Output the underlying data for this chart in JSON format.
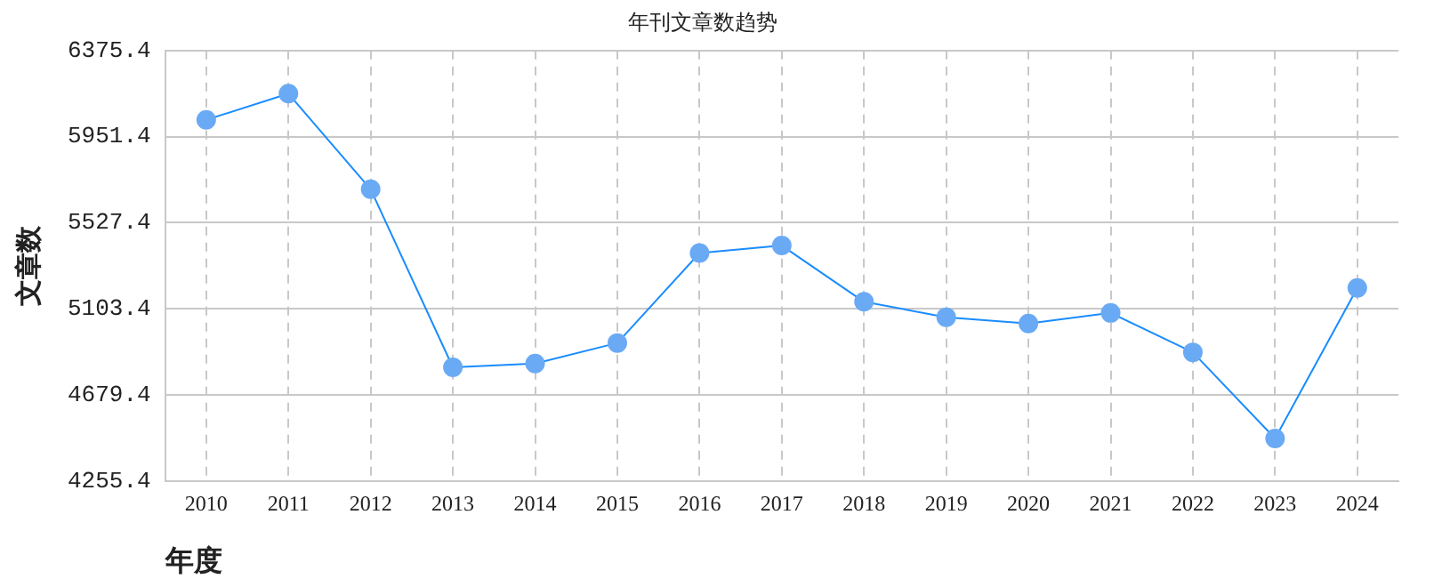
{
  "chart_data": {
    "type": "line",
    "title": "年刊文章数趋势",
    "xlabel": "年度",
    "ylabel": "文章数",
    "categories": [
      "2010",
      "2011",
      "2012",
      "2013",
      "2014",
      "2015",
      "2016",
      "2017",
      "2018",
      "2019",
      "2020",
      "2021",
      "2022",
      "2023",
      "2024"
    ],
    "series": [
      {
        "color": "#1a8cff",
        "values": [
          6034,
          6163,
          5692,
          4815,
          4834,
          4935,
          5378,
          5415,
          5138,
          5062,
          5031,
          5083,
          4889,
          4465,
          5206
        ]
      }
    ],
    "ylim": [
      4255.4,
      6375.4
    ],
    "yticks": [
      4255.4,
      4679.4,
      5103.4,
      5527.4,
      5951.4,
      6375.4
    ],
    "grid": true,
    "legend": false,
    "marker": "circle",
    "line_style": "solid"
  }
}
